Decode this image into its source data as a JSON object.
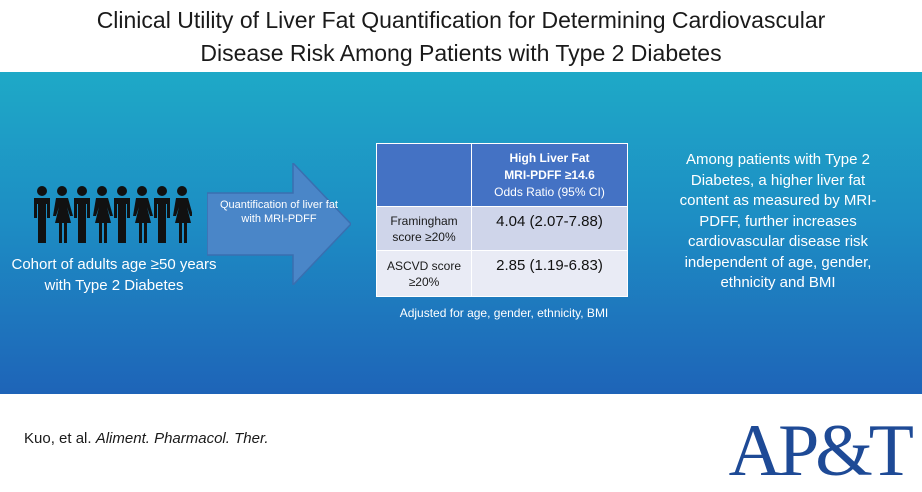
{
  "title": {
    "line1": "Clinical Utility of Liver Fat Quantification for Determining Cardiovascular",
    "line2": "Disease Risk Among Patients with Type 2 Diabetes"
  },
  "cohort": {
    "icon_count": 8,
    "text": "Cohort of adults age ≥50 years with Type 2 Diabetes"
  },
  "arrow": {
    "text": "Quantification of liver fat with MRI-PDFF"
  },
  "table": {
    "header_line1": "High Liver Fat",
    "header_line2": "MRI-PDFF ≥14.6",
    "header_line3": "Odds Ratio (95% CI)",
    "rows": [
      {
        "label": "Framingham score ≥20%",
        "value": "4.04 (2.07-7.88)"
      },
      {
        "label": "ASCVD score ≥20%",
        "value": "2.85 (1.19-6.83)"
      }
    ],
    "footnote": "Adjusted for age, gender, ethnicity, BMI"
  },
  "summary": "Among patients with Type 2 Diabetes, a higher liver fat content as measured by MRI-PDFF, further increases cardiovascular disease risk independent of age, gender, ethnicity and BMI",
  "citation": {
    "authors": "Kuo, et al.",
    "journal": "Aliment. Pharmacol. Ther."
  },
  "logo": "AP&T",
  "colors": {
    "band_top": "#1ea9c7",
    "band_bottom": "#1e64b8",
    "table_header": "#4472c4",
    "logo": "#1e4a96"
  }
}
